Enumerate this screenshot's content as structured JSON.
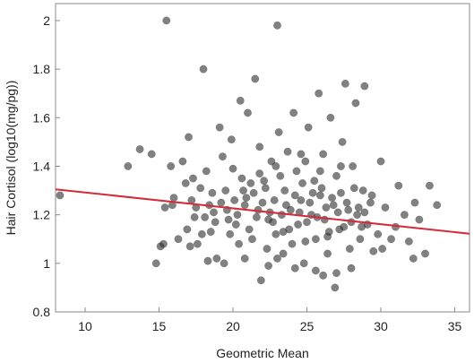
{
  "chart_data": {
    "type": "scatter",
    "title": "",
    "xlabel": "Geometric Mean",
    "ylabel": "Hair Cortisol (log10(mg/pg))",
    "xlim": [
      8,
      36
    ],
    "ylim": [
      0.8,
      2.07
    ],
    "x_ticks": [
      10,
      15,
      20,
      25,
      30,
      35
    ],
    "y_ticks": [
      0.8,
      1,
      1.2,
      1.4,
      1.6,
      1.8,
      2
    ],
    "x_tick_labels": [
      "10",
      "15",
      "20",
      "25",
      "30",
      "35"
    ],
    "y_tick_labels": [
      "0.8",
      "1",
      "1.2",
      "1.4",
      "1.6",
      "1.8",
      "2"
    ],
    "grid": false,
    "legend": "none",
    "point_color": "#333333",
    "trend_line_color": "#d42a3a",
    "series": [
      {
        "points": [
          [
            8.3,
            1.28
          ],
          [
            12.9,
            1.4
          ],
          [
            13.7,
            1.47
          ],
          [
            14.5,
            1.45
          ],
          [
            14.8,
            1.0
          ],
          [
            15.1,
            1.07
          ],
          [
            15.3,
            1.08
          ],
          [
            15.5,
            2.0
          ],
          [
            15.8,
            1.4
          ],
          [
            15.4,
            1.23
          ],
          [
            15.9,
            1.24
          ],
          [
            16.0,
            1.27
          ],
          [
            16.3,
            1.1
          ],
          [
            16.6,
            1.42
          ],
          [
            16.8,
            1.33
          ],
          [
            17.0,
            1.52
          ],
          [
            17.2,
            1.26
          ],
          [
            17.4,
            1.19
          ],
          [
            17.1,
            1.07
          ],
          [
            16.9,
            1.14
          ],
          [
            17.6,
            1.08
          ],
          [
            17.9,
            1.12
          ],
          [
            18.0,
            1.8
          ],
          [
            18.2,
            1.38
          ],
          [
            18.4,
            1.24
          ],
          [
            18.6,
            1.29
          ],
          [
            18.8,
            1.17
          ],
          [
            18.3,
            1.01
          ],
          [
            18.9,
            1.02
          ],
          [
            19.1,
            1.56
          ],
          [
            19.3,
            1.44
          ],
          [
            19.5,
            1.3
          ],
          [
            19.7,
            1.18
          ],
          [
            19.4,
            1.0
          ],
          [
            19.9,
            1.51
          ],
          [
            20.0,
            1.39
          ],
          [
            20.3,
            1.2
          ],
          [
            20.5,
            1.67
          ],
          [
            20.6,
            1.35
          ],
          [
            20.8,
            1.24
          ],
          [
            20.4,
            1.08
          ],
          [
            21.0,
            1.62
          ],
          [
            21.1,
            1.14
          ],
          [
            21.4,
            1.29
          ],
          [
            21.5,
            1.76
          ],
          [
            21.7,
            1.22
          ],
          [
            21.9,
            0.93
          ],
          [
            21.8,
            1.48
          ],
          [
            22.1,
            1.34
          ],
          [
            22.3,
            1.06
          ],
          [
            22.4,
            1.18
          ],
          [
            22.6,
            1.42
          ],
          [
            22.8,
            1.26
          ],
          [
            22.9,
            1.12
          ],
          [
            23.0,
            1.98
          ],
          [
            23.1,
            1.54
          ],
          [
            23.2,
            1.36
          ],
          [
            23.3,
            1.2
          ],
          [
            23.4,
            1.04
          ],
          [
            23.5,
            1.3
          ],
          [
            23.7,
            1.46
          ],
          [
            23.9,
            1.22
          ],
          [
            24.0,
            1.08
          ],
          [
            24.1,
            1.62
          ],
          [
            24.3,
            1.38
          ],
          [
            24.4,
            1.16
          ],
          [
            24.6,
            1.26
          ],
          [
            24.8,
            1.0
          ],
          [
            24.9,
            1.42
          ],
          [
            25.1,
            1.56
          ],
          [
            25.3,
            1.2
          ],
          [
            25.5,
            1.34
          ],
          [
            25.6,
            1.1
          ],
          [
            25.8,
            1.7
          ],
          [
            25.9,
            1.28
          ],
          [
            26.1,
            1.45
          ],
          [
            26.2,
            1.18
          ],
          [
            26.4,
            1.04
          ],
          [
            26.6,
            1.6
          ],
          [
            26.8,
            1.24
          ],
          [
            26.9,
            0.9
          ],
          [
            27.0,
            1.36
          ],
          [
            27.2,
            1.14
          ],
          [
            27.4,
            1.5
          ],
          [
            27.6,
            1.74
          ],
          [
            27.8,
            1.22
          ],
          [
            27.9,
            1.06
          ],
          [
            28.1,
            1.4
          ],
          [
            28.3,
            1.66
          ],
          [
            28.4,
            1.2
          ],
          [
            28.6,
            1.1
          ],
          [
            28.8,
            1.3
          ],
          [
            28.9,
            1.73
          ],
          [
            29.1,
            1.16
          ],
          [
            29.3,
            1.25
          ],
          [
            29.5,
            1.05
          ],
          [
            30.0,
            1.42
          ],
          [
            30.3,
            1.23
          ],
          [
            30.7,
            1.1
          ],
          [
            31.2,
            1.32
          ],
          [
            31.6,
            1.2
          ],
          [
            31.9,
            1.09
          ],
          [
            32.3,
            1.25
          ],
          [
            32.6,
            1.18
          ],
          [
            33.0,
            1.04
          ],
          [
            33.3,
            1.32
          ],
          [
            33.8,
            1.24
          ],
          [
            32.2,
            1.02
          ],
          [
            31.0,
            1.15
          ],
          [
            29.8,
            1.12
          ],
          [
            20.9,
            1.27
          ],
          [
            21.2,
            1.33
          ],
          [
            21.6,
            1.19
          ],
          [
            22.0,
            1.25
          ],
          [
            22.2,
            1.31
          ],
          [
            22.5,
            1.21
          ],
          [
            22.7,
            1.17
          ],
          [
            23.6,
            1.24
          ],
          [
            23.8,
            1.14
          ],
          [
            24.2,
            1.28
          ],
          [
            24.5,
            1.21
          ],
          [
            24.7,
            1.33
          ],
          [
            25.0,
            1.17
          ],
          [
            25.2,
            1.25
          ],
          [
            25.4,
            1.29
          ],
          [
            25.7,
            1.19
          ],
          [
            26.0,
            1.31
          ],
          [
            26.3,
            1.23
          ],
          [
            26.5,
            1.13
          ],
          [
            26.7,
            1.27
          ],
          [
            27.1,
            1.21
          ],
          [
            27.3,
            1.29
          ],
          [
            27.5,
            1.15
          ],
          [
            27.7,
            1.25
          ],
          [
            28.0,
            1.17
          ],
          [
            28.2,
            1.31
          ],
          [
            28.5,
            1.23
          ],
          [
            28.7,
            1.15
          ],
          [
            19.6,
            1.22
          ],
          [
            19.8,
            1.12
          ],
          [
            20.1,
            1.26
          ],
          [
            20.2,
            1.16
          ],
          [
            20.7,
            1.3
          ],
          [
            19.2,
            1.25
          ],
          [
            18.7,
            1.21
          ],
          [
            18.5,
            1.13
          ],
          [
            18.1,
            1.19
          ],
          [
            17.8,
            1.31
          ],
          [
            17.5,
            1.23
          ],
          [
            17.3,
            1.35
          ],
          [
            21.3,
            1.1
          ],
          [
            22.9,
            1.4
          ],
          [
            24.6,
            1.45
          ],
          [
            25.9,
            1.38
          ],
          [
            27.3,
            1.4
          ],
          [
            23.4,
            1.13
          ],
          [
            24.9,
            1.09
          ],
          [
            26.4,
            1.11
          ],
          [
            21.8,
            1.37
          ],
          [
            22.4,
            0.99
          ],
          [
            23.0,
            1.02
          ],
          [
            25.6,
            0.97
          ],
          [
            26.1,
            0.95
          ],
          [
            24.2,
            0.98
          ],
          [
            20.8,
            1.02
          ],
          [
            28.9,
            1.21
          ],
          [
            29.4,
            1.28
          ],
          [
            28.0,
            0.98
          ],
          [
            27.0,
            0.96
          ],
          [
            30.1,
            1.06
          ]
        ]
      }
    ],
    "trend_line": {
      "x": [
        8,
        36
      ],
      "y": [
        1.305,
        1.122
      ]
    }
  }
}
